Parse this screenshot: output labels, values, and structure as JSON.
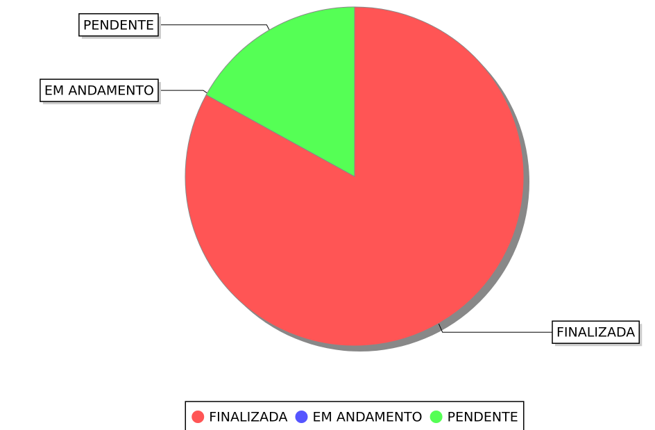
{
  "chart_data": {
    "type": "pie",
    "series": [
      {
        "name": "FINALIZADA",
        "color": "#ff5555",
        "values": [
          83
        ]
      },
      {
        "name": "EM ANDAMENTO",
        "color": "#5555ff",
        "values": [
          0
        ]
      },
      {
        "name": "PENDENTE",
        "color": "#55ff55",
        "values": [
          17
        ]
      }
    ],
    "legend": "bottom"
  }
}
